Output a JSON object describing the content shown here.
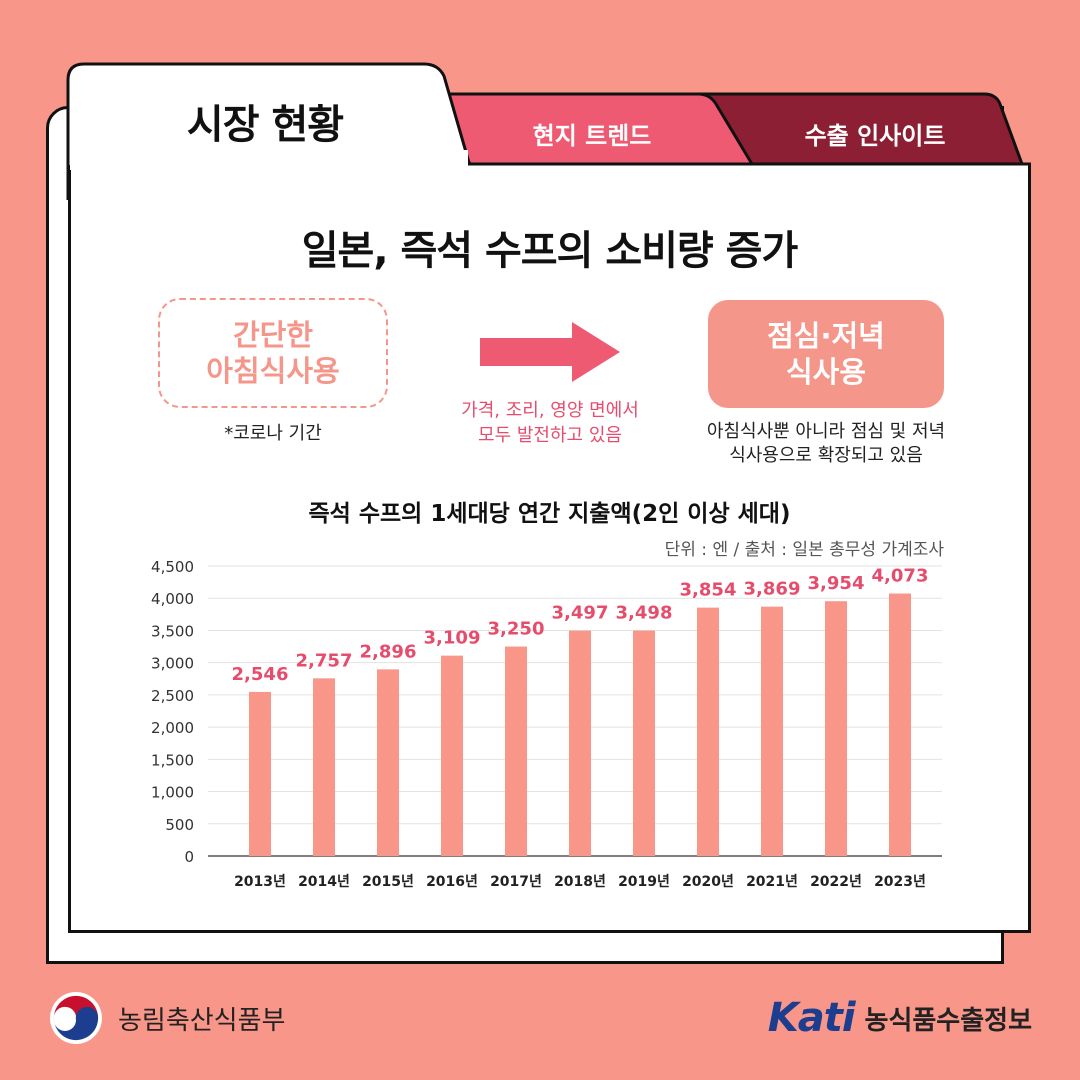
{
  "tabs": {
    "active": "시장 현황",
    "trend": "현지 트렌드",
    "export": "수출 인사이트"
  },
  "headline": "일본, 즉석 수프의 소비량 증가",
  "comparison": {
    "before": {
      "line1": "간단한",
      "line2": "아침식사용",
      "note": "*코로나 기간"
    },
    "arrow_note": {
      "line1": "가격, 조리, 영양 면에서",
      "line2": "모두 발전하고 있음"
    },
    "after": {
      "line1": "점심·저녁",
      "line2": "식사용",
      "note1": "아침식사뿐 아니라 점심 및 저녁",
      "note2": "식사용으로 확장되고 있음"
    }
  },
  "chart_data": {
    "type": "bar",
    "title": "즉석 수프의 1세대당 연간 지출액(2인 이상 세대)",
    "source": "단위 : 엔 / 출처 : 일본 총무성 가계조사",
    "categories": [
      "2013년",
      "2014년",
      "2015년",
      "2016년",
      "2017년",
      "2018년",
      "2019년",
      "2020년",
      "2021년",
      "2022년",
      "2023년"
    ],
    "values": [
      2546,
      2757,
      2896,
      3109,
      3250,
      3497,
      3498,
      3854,
      3869,
      3954,
      4073
    ],
    "value_labels": [
      "2,546",
      "2,757",
      "2,896",
      "3,109",
      "3,250",
      "3,497",
      "3,498",
      "3,854",
      "3,869",
      "3,954",
      "4,073"
    ],
    "ylim": [
      0,
      4500
    ],
    "yticks": [
      "0",
      "500",
      "1,000",
      "1,500",
      "2,000",
      "2,500",
      "3,000",
      "3,500",
      "4,000",
      "4,500"
    ],
    "grid": true,
    "bar_color": "#f9968a",
    "label_color": "#e64d6d"
  },
  "footer": {
    "ministry": "농림축산식품부",
    "kati_logo": "Kati",
    "kati_name": "농식품수출정보"
  },
  "colors": {
    "background": "#f9968a",
    "tab_trend": "#ef5a73",
    "tab_export": "#8c1f33",
    "accent": "#e64d6d"
  }
}
